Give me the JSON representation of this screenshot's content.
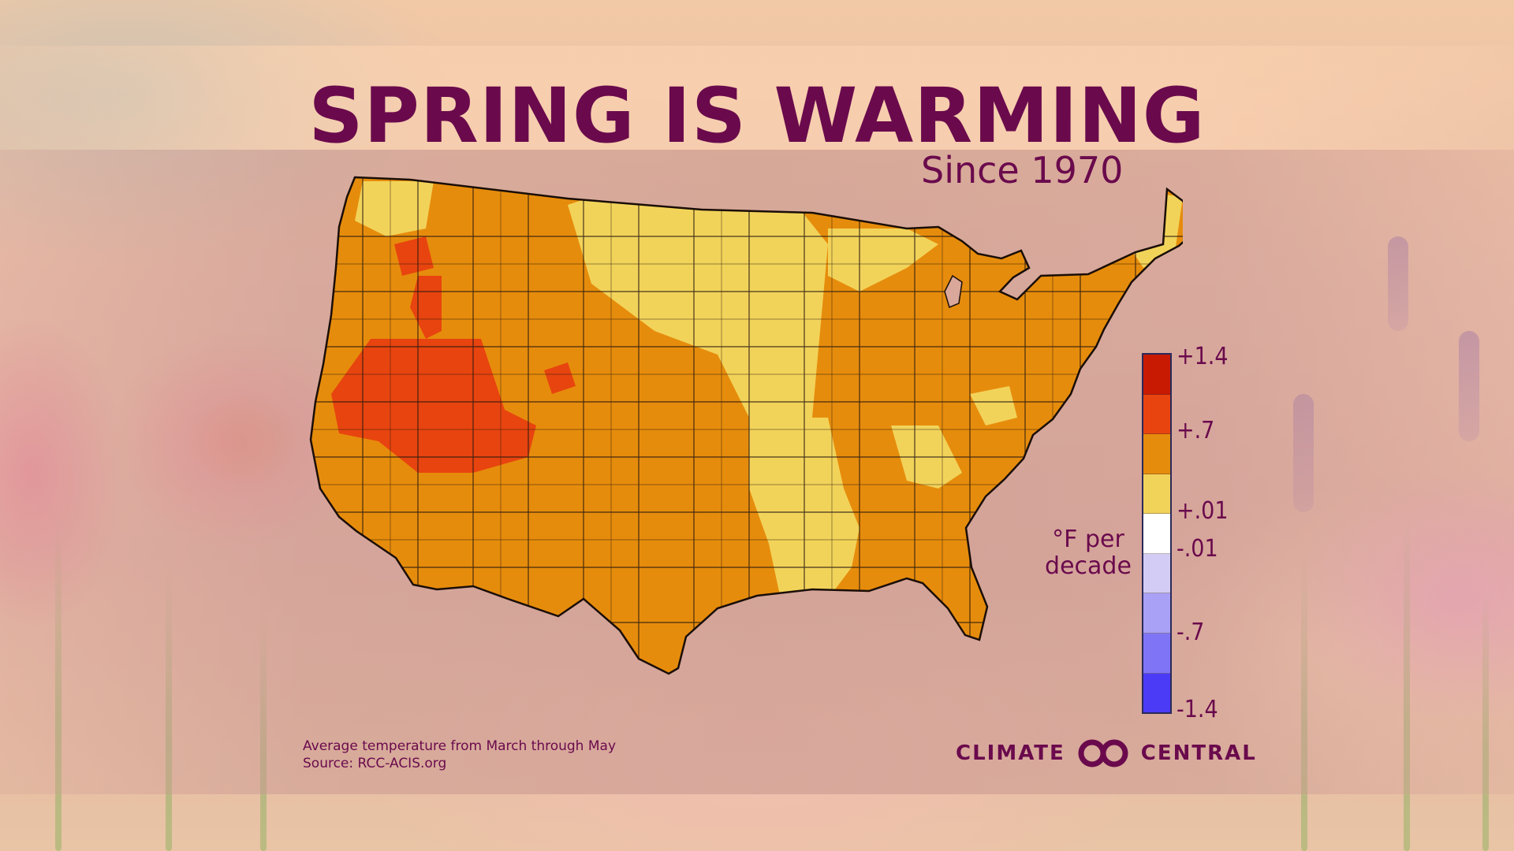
{
  "title": "SPRING IS WARMING",
  "subtitle": "Since 1970",
  "legend": {
    "unit_line1": "°F per",
    "unit_line2": "decade",
    "ticks": [
      "+1.4",
      "+.7",
      "+.01",
      "-.01",
      "-.7",
      "-1.4"
    ],
    "colors": [
      "#c81a02",
      "#e8440f",
      "#e68c0c",
      "#f2d35a",
      "#ffffff",
      "#d3cdf5",
      "#a9a1f5",
      "#7f74f6",
      "#4b3bf7"
    ]
  },
  "map": {
    "region": "contiguous United States",
    "color_west_hot": "#e8440f",
    "color_warm": "#e68c0c",
    "color_mild": "#f2d35a"
  },
  "footnote": {
    "line1": "Average temperature from March through May",
    "line2": "Source: RCC-ACIS.org"
  },
  "brand": {
    "left": "CLIMATE",
    "right": "CENTRAL",
    "logo_icon": "climate-central-logo-icon"
  }
}
